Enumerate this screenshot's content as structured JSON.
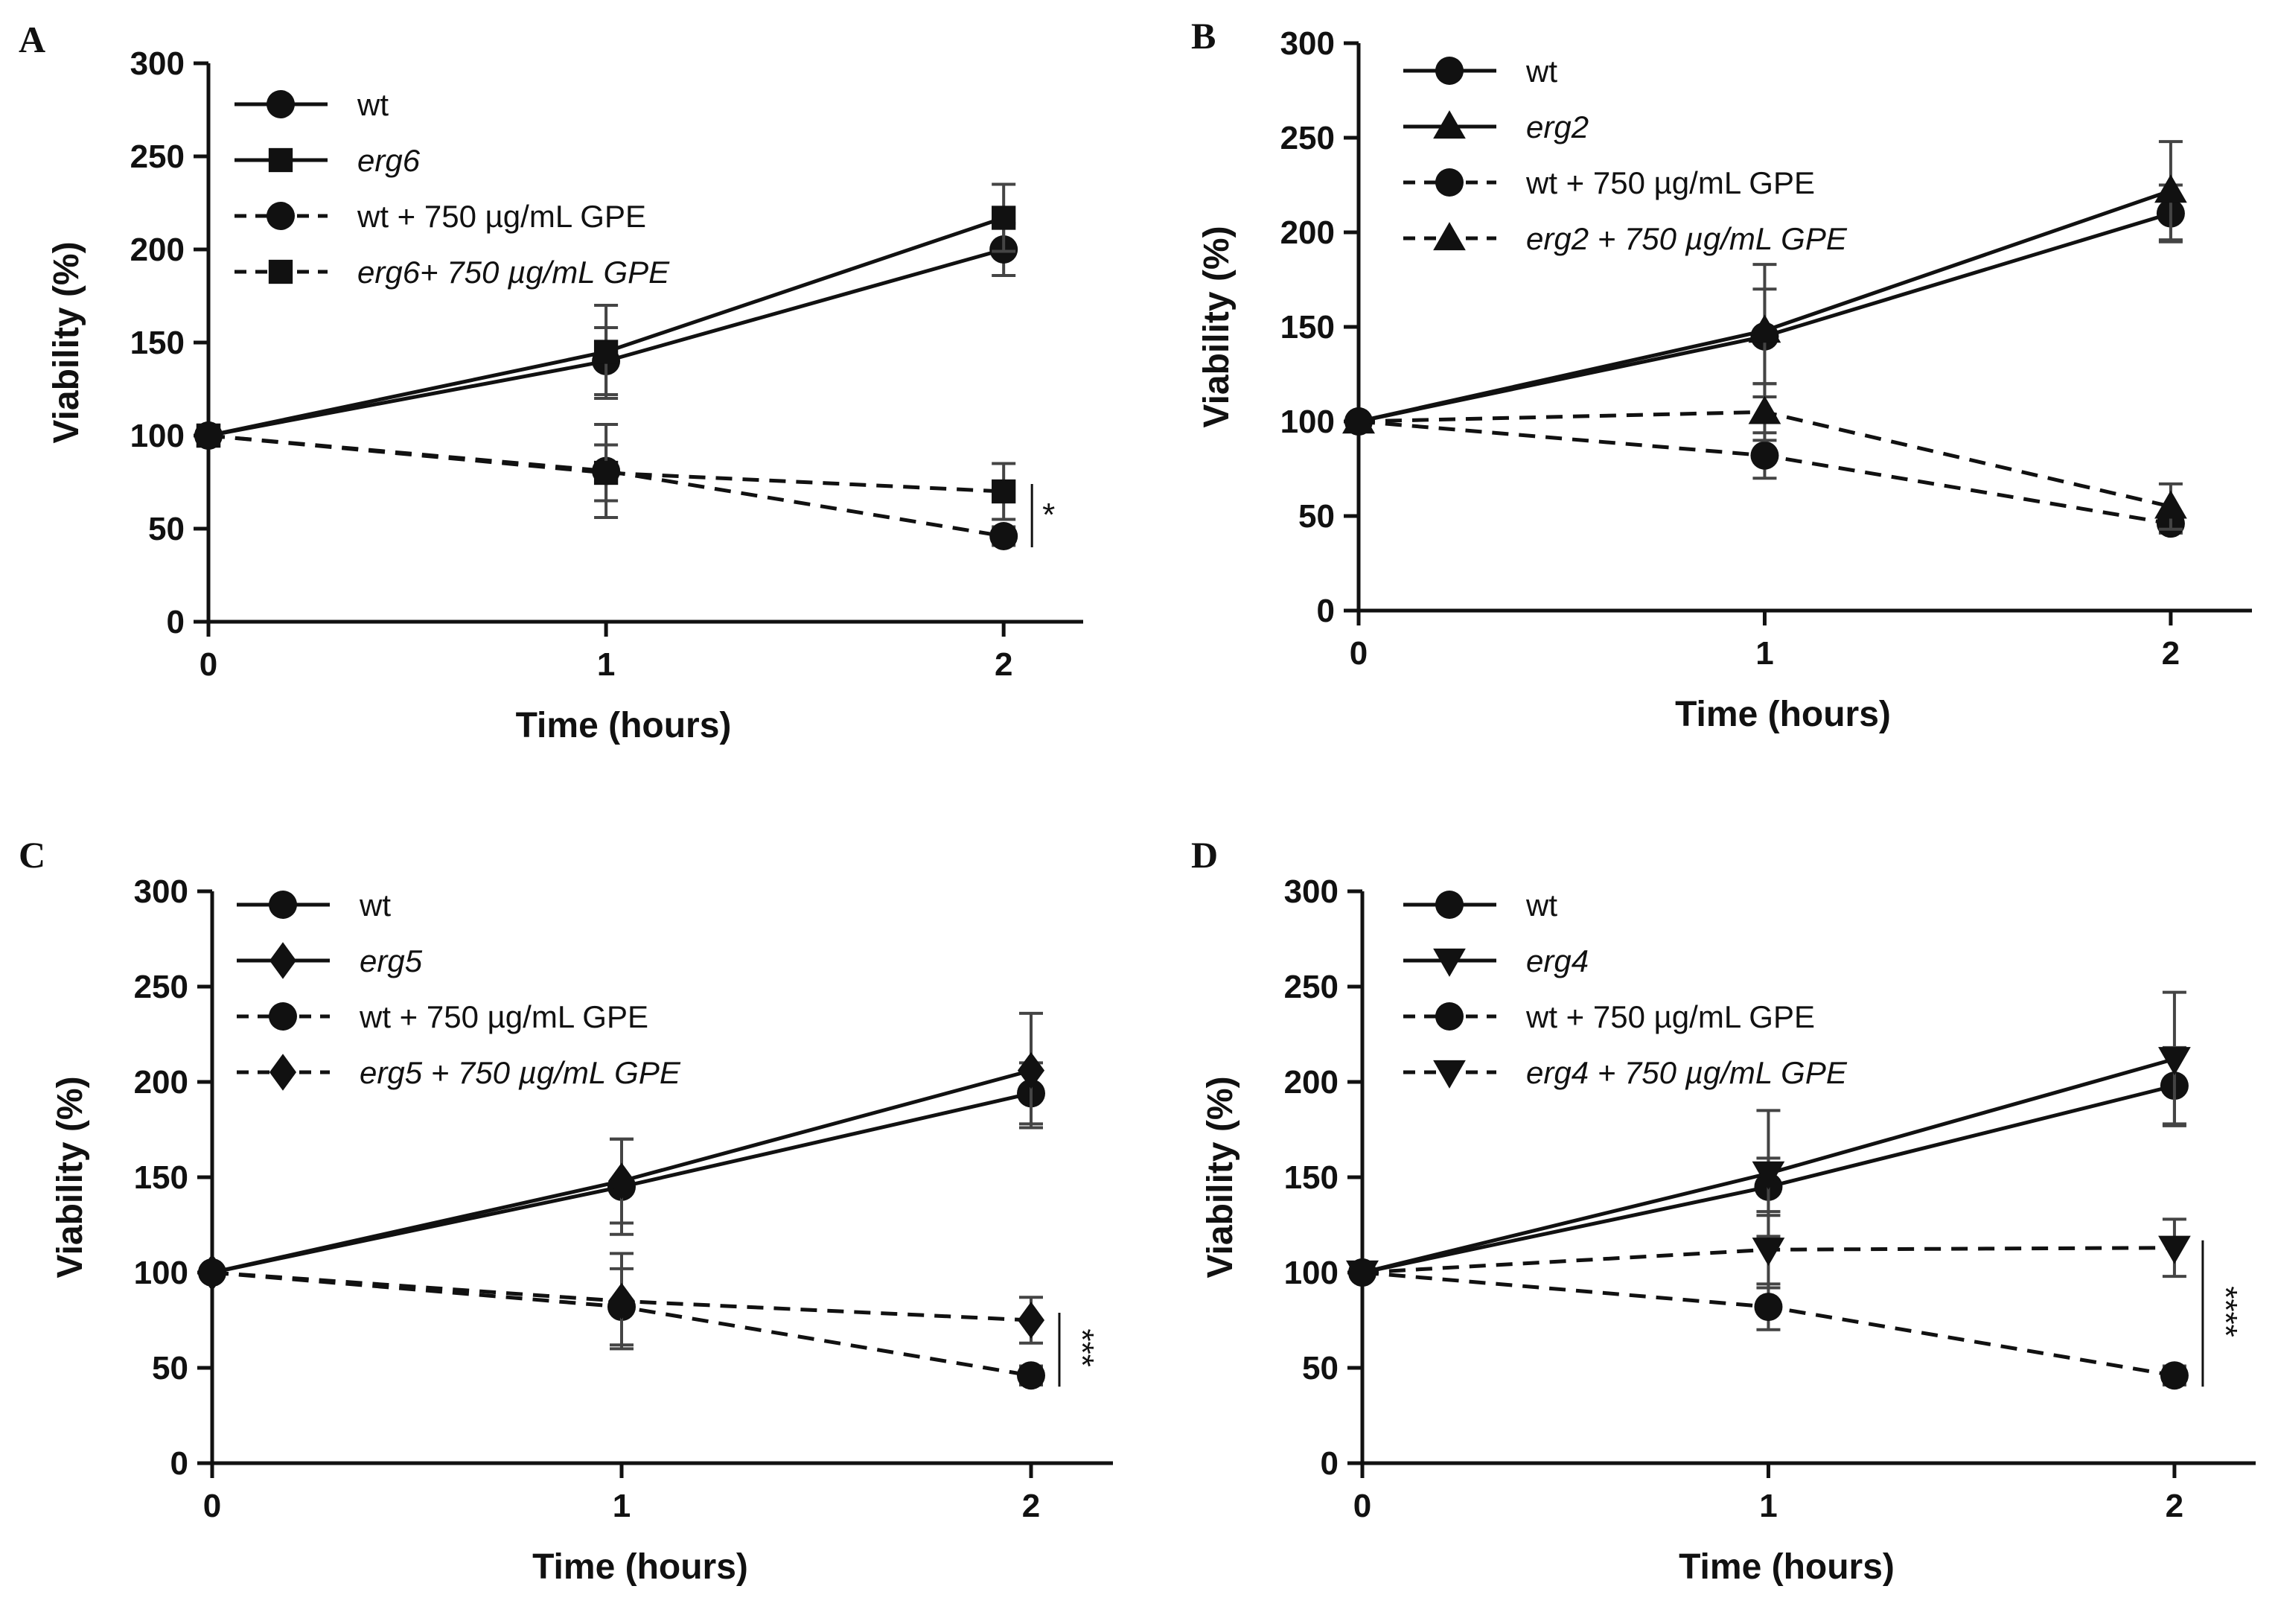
{
  "figure": {
    "background": "#ffffff",
    "ink": "#111111"
  },
  "chart_data": [
    {
      "panel": "A",
      "type": "line",
      "xlabel": "Time (hours)",
      "ylabel": "Viability (%)",
      "x": [
        0,
        1,
        2
      ],
      "xticks": [
        "0",
        "1",
        "2"
      ],
      "yticks": [
        "0",
        "50",
        "100",
        "150",
        "200",
        "250",
        "300"
      ],
      "ylim": [
        0,
        300
      ],
      "xlim": [
        0,
        2.2
      ],
      "series": [
        {
          "name": "wt",
          "italic": false,
          "marker": "circle",
          "dash": false,
          "values": [
            100,
            140,
            200
          ],
          "errors": [
            0,
            18,
            14
          ]
        },
        {
          "name": "erg6",
          "italic": true,
          "marker": "square",
          "dash": false,
          "values": [
            100,
            145,
            217
          ],
          "errors": [
            0,
            25,
            18
          ]
        },
        {
          "name": "wt + 750 µg/mL GPE",
          "italic": false,
          "marker": "circle",
          "dash": true,
          "values": [
            100,
            81,
            46
          ],
          "errors": [
            0,
            25,
            5
          ]
        },
        {
          "name": "erg6+ 750 µg/mL GPE",
          "italic": true,
          "marker": "square",
          "dash": true,
          "values": [
            100,
            80,
            70
          ],
          "errors": [
            0,
            15,
            15
          ]
        }
      ],
      "significance": {
        "label": "*",
        "x": 2,
        "y_low": 46,
        "y_high": 70
      }
    },
    {
      "panel": "B",
      "type": "line",
      "xlabel": "Time (hours)",
      "ylabel": "Viability (%)",
      "x": [
        0,
        1,
        2
      ],
      "xticks": [
        "0",
        "1",
        "2"
      ],
      "yticks": [
        "0",
        "50",
        "100",
        "150",
        "200",
        "250",
        "300"
      ],
      "ylim": [
        0,
        300
      ],
      "xlim": [
        0,
        2.2
      ],
      "series": [
        {
          "name": "wt",
          "italic": false,
          "marker": "circle",
          "dash": false,
          "values": [
            100,
            145,
            210
          ],
          "errors": [
            0,
            25,
            15
          ]
        },
        {
          "name": "erg2",
          "italic": true,
          "marker": "triangle-up",
          "dash": false,
          "values": [
            100,
            148,
            222
          ],
          "errors": [
            0,
            35,
            26
          ]
        },
        {
          "name": "wt + 750 µg/mL GPE",
          "italic": false,
          "marker": "circle",
          "dash": true,
          "values": [
            100,
            82,
            46
          ],
          "errors": [
            0,
            12,
            5
          ]
        },
        {
          "name": "erg2 + 750 µg/mL GPE",
          "italic": true,
          "marker": "triangle-up",
          "dash": true,
          "values": [
            100,
            105,
            55
          ],
          "errors": [
            0,
            15,
            12
          ]
        }
      ]
    },
    {
      "panel": "C",
      "type": "line",
      "xlabel": "Time (hours)",
      "ylabel": "Viability (%)",
      "x": [
        0,
        1,
        2
      ],
      "xticks": [
        "0",
        "1",
        "2"
      ],
      "yticks": [
        "0",
        "50",
        "100",
        "150",
        "200",
        "250",
        "300"
      ],
      "ylim": [
        0,
        300
      ],
      "xlim": [
        0,
        2.2
      ],
      "series": [
        {
          "name": "wt",
          "italic": false,
          "marker": "circle",
          "dash": false,
          "values": [
            100,
            145,
            194
          ],
          "errors": [
            0,
            25,
            16
          ]
        },
        {
          "name": "erg5",
          "italic": true,
          "marker": "diamond",
          "dash": false,
          "values": [
            100,
            148,
            206
          ],
          "errors": [
            0,
            22,
            30
          ]
        },
        {
          "name": "wt + 750 µg/mL GPE",
          "italic": false,
          "marker": "circle",
          "dash": true,
          "values": [
            100,
            82,
            46
          ],
          "errors": [
            0,
            20,
            5
          ]
        },
        {
          "name": "erg5 + 750 µg/mL GPE",
          "italic": true,
          "marker": "diamond",
          "dash": true,
          "values": [
            100,
            85,
            75
          ],
          "errors": [
            0,
            25,
            12
          ]
        }
      ],
      "significance": {
        "label": "***",
        "x": 2,
        "y_low": 46,
        "y_high": 75
      }
    },
    {
      "panel": "D",
      "type": "line",
      "xlabel": "Time (hours)",
      "ylabel": "Viability (%)",
      "x": [
        0,
        1,
        2
      ],
      "xticks": [
        "0",
        "1",
        "2"
      ],
      "yticks": [
        "0",
        "50",
        "100",
        "150",
        "200",
        "250",
        "300"
      ],
      "ylim": [
        0,
        300
      ],
      "xlim": [
        0,
        2.2
      ],
      "series": [
        {
          "name": "wt",
          "italic": false,
          "marker": "circle",
          "dash": false,
          "values": [
            100,
            145,
            198
          ],
          "errors": [
            0,
            15,
            20
          ]
        },
        {
          "name": "erg4",
          "italic": true,
          "marker": "triangle-down",
          "dash": false,
          "values": [
            100,
            152,
            212
          ],
          "errors": [
            0,
            33,
            35
          ]
        },
        {
          "name": "wt + 750 µg/mL GPE",
          "italic": false,
          "marker": "circle",
          "dash": true,
          "values": [
            100,
            82,
            46
          ],
          "errors": [
            0,
            12,
            5
          ]
        },
        {
          "name": "erg4 + 750 µg/mL GPE",
          "italic": true,
          "marker": "triangle-down",
          "dash": true,
          "values": [
            100,
            112,
            113
          ],
          "errors": [
            0,
            20,
            15
          ]
        }
      ],
      "significance": {
        "label": "****",
        "x": 2,
        "y_low": 46,
        "y_high": 113
      }
    }
  ]
}
